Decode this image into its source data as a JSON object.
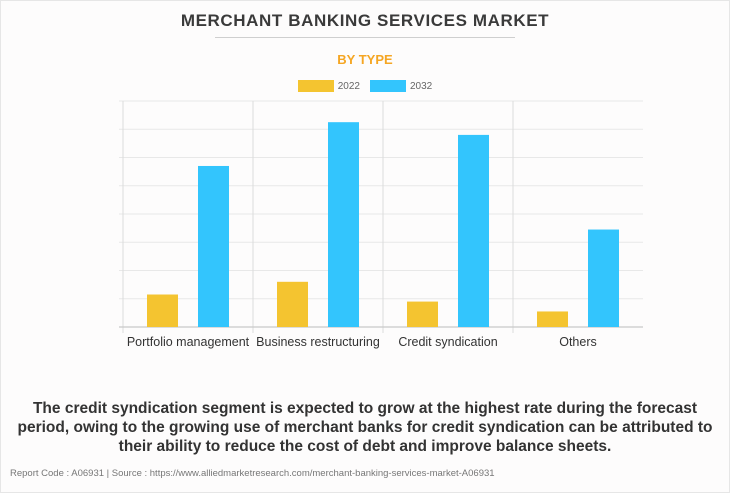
{
  "header": {
    "title": "MERCHANT BANKING SERVICES MARKET",
    "subtitle": "BY TYPE"
  },
  "colors": {
    "series_2022": "#f4c430",
    "series_2032": "#33c5fd",
    "subtitle": "#f5a623"
  },
  "chart_data": {
    "type": "bar",
    "title": "MERCHANT BANKING SERVICES MARKET",
    "subtitle": "BY TYPE",
    "xlabel": "",
    "ylabel": "",
    "categories": [
      "Portfolio management",
      "Business restructuring",
      "Credit syndication",
      "Others"
    ],
    "series": [
      {
        "name": "2022",
        "values": [
          1.15,
          1.6,
          0.9,
          0.55
        ]
      },
      {
        "name": "2032",
        "values": [
          5.7,
          7.25,
          6.8,
          3.45
        ]
      }
    ],
    "ylim": [
      0,
      8
    ],
    "y_gridlines": 8,
    "y_tick_labels_shown": false,
    "grid": true,
    "legend": "top-center"
  },
  "insight": "The credit syndication segment is expected to grow at the highest rate during the forecast period, owing to the growing use of merchant banks for credit syndication can be attributed to their ability to reduce the cost of debt and improve balance sheets.",
  "footer": "Report Code : A06931  |  Source : https://www.alliedmarketresearch.com/merchant-banking-services-market-A06931"
}
